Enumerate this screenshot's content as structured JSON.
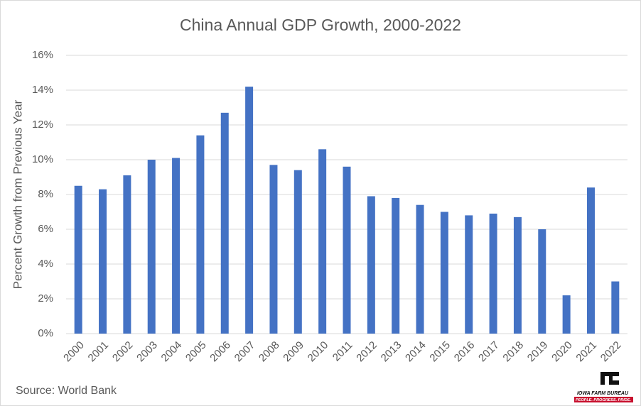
{
  "chart_data": {
    "type": "bar",
    "title": "China Annual GDP Growth, 2000-2022",
    "y_label": "Percent Growth from Previous Year",
    "categories": [
      "2000",
      "2001",
      "2002",
      "2003",
      "2004",
      "2005",
      "2006",
      "2007",
      "2008",
      "2009",
      "2010",
      "2011",
      "2012",
      "2013",
      "2014",
      "2015",
      "2016",
      "2017",
      "2018",
      "2019",
      "2020",
      "2021",
      "2022"
    ],
    "values": [
      8.5,
      8.3,
      9.1,
      10.0,
      10.1,
      11.4,
      12.7,
      14.2,
      9.7,
      9.4,
      10.6,
      9.6,
      7.9,
      7.8,
      7.4,
      7.0,
      6.8,
      6.9,
      6.7,
      6.0,
      2.2,
      8.4,
      3.0
    ],
    "color": "#4472c4",
    "ylim": [
      0,
      16
    ],
    "yticks": [
      {
        "value": 0,
        "label": "0%"
      },
      {
        "value": 2,
        "label": "2%"
      },
      {
        "value": 4,
        "label": "4%"
      },
      {
        "value": 6,
        "label": "6%"
      },
      {
        "value": 8,
        "label": "8%"
      },
      {
        "value": 10,
        "label": "10%"
      },
      {
        "value": 12,
        "label": "12%"
      },
      {
        "value": 14,
        "label": "14%"
      },
      {
        "value": 16,
        "label": "16%"
      }
    ],
    "grid": true,
    "source": "Source: World Bank"
  },
  "logo": {
    "name": "IOWA FARM BUREAU",
    "tagline": "PEOPLE. PROGRESS. PRIDE."
  }
}
